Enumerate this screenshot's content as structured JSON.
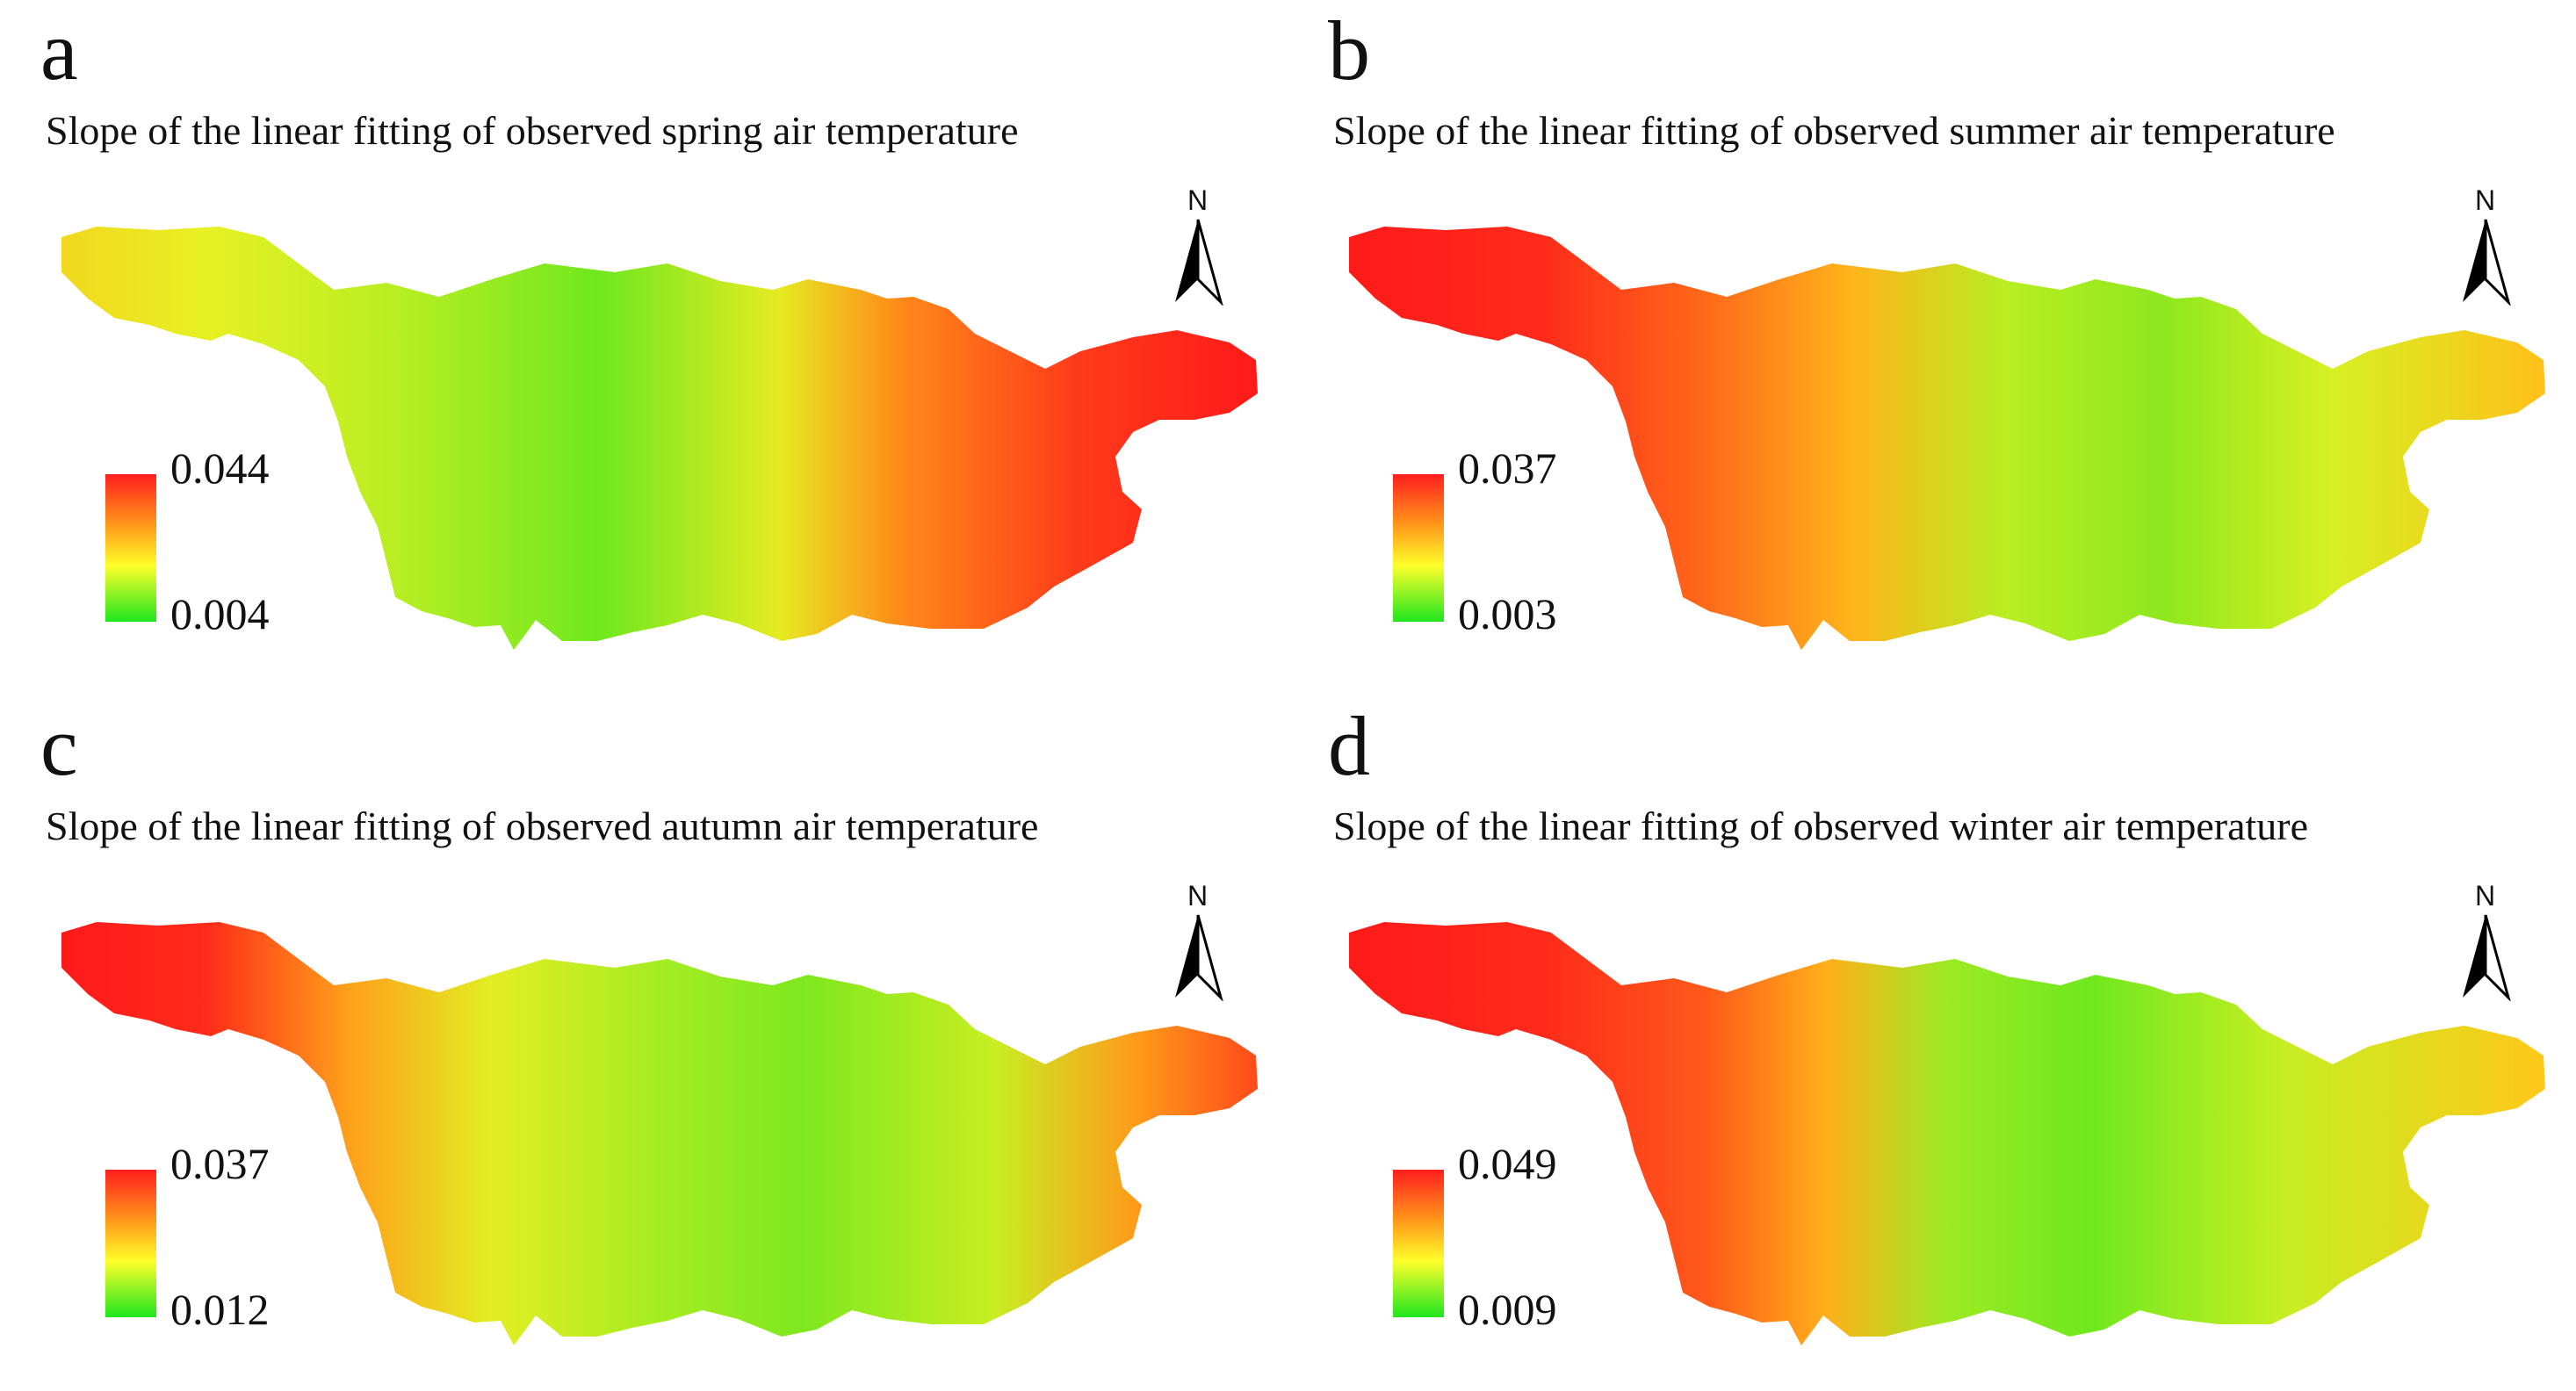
{
  "figure": {
    "panels": [
      {
        "id": "a",
        "letter": "a",
        "title": "Slope of the linear fitting of observed spring air temperature",
        "legend": {
          "max_label": "0.044",
          "min_label": "0.004",
          "max": 0.044,
          "min": 0.004
        },
        "north_label": "N",
        "pattern": "east-high"
      },
      {
        "id": "b",
        "letter": "b",
        "title": "Slope of the linear fitting of observed summer air temperature",
        "legend": {
          "max_label": "0.037",
          "min_label": "0.003",
          "max": 0.037,
          "min": 0.003
        },
        "north_label": "N",
        "pattern": "west-high"
      },
      {
        "id": "c",
        "letter": "c",
        "title": "Slope of the linear fitting of observed autumn air temperature",
        "legend": {
          "max_label": "0.037",
          "min_label": "0.012",
          "max": 0.037,
          "min": 0.012
        },
        "north_label": "N",
        "pattern": "west-high-east-moderate"
      },
      {
        "id": "d",
        "letter": "d",
        "title": "Slope of the linear fitting of observed winter air temperature",
        "legend": {
          "max_label": "0.049",
          "min_label": "0.009",
          "max": 0.049,
          "min": 0.009
        },
        "north_label": "N",
        "pattern": "west-high"
      }
    ],
    "colormap": [
      "#1ee61e",
      "#ffff2a",
      "#ff9a1a",
      "#ff1e1e"
    ]
  }
}
